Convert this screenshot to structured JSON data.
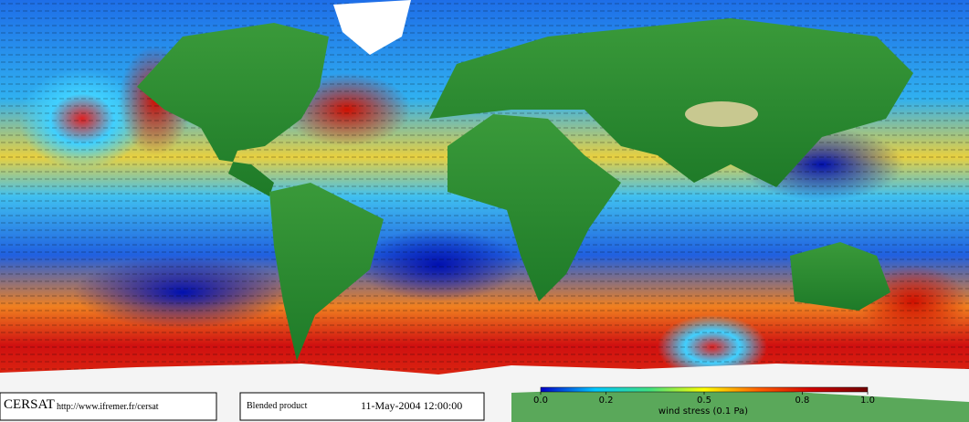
{
  "footer": {
    "logo": "CERSAT",
    "url": "http://www.ifremer.fr/cersat",
    "product": "Blended product",
    "date": "11-May-2004 12:00:00"
  },
  "colorbar": {
    "label": "wind stress (0.1 Pa)",
    "range": [
      0,
      1
    ],
    "ticks": [
      {
        "value": 0,
        "label": "0.0"
      },
      0.2,
      0.5,
      0.8,
      {
        "value": 1,
        "label": "1.0"
      }
    ],
    "colors": [
      "#0000c8",
      "#00c8ff",
      "#40e080",
      "#ffff00",
      "#ff6000",
      "#d00000",
      "#700000"
    ]
  }
}
